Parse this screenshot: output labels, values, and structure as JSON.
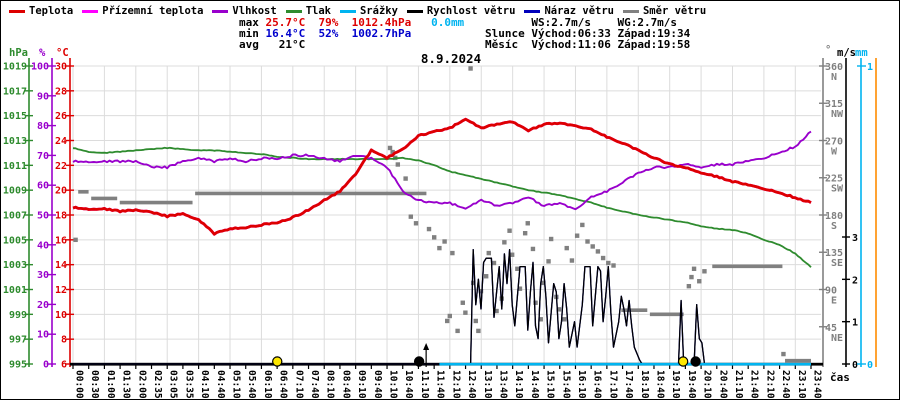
{
  "colors": {
    "temperature": "#dd0000",
    "ground_temperature": "#ff00ff",
    "humidity": "#9900cc",
    "pressure": "#2e8b2e",
    "precipitation": "#00b4f0",
    "wind_speed": "#000000",
    "wind_gust": "#0000bb",
    "wind_direction": "#808080",
    "extra_right_axis": "#ff8c00",
    "grid": "#dcdcdc",
    "sun_marker": "#ffe800",
    "moon_marker": "#000000",
    "stats_max": "#dd0000",
    "stats_min": "#0000cc"
  },
  "legend": {
    "items": [
      {
        "label": "Teplota",
        "color": "#dd0000"
      },
      {
        "label": "Přízemní teplota",
        "color": "#ff00ff"
      },
      {
        "label": "Vlhkost",
        "color": "#9900cc"
      },
      {
        "label": "Tlak",
        "color": "#2e8b2e"
      },
      {
        "label": "Srážky",
        "color": "#00b4f0"
      },
      {
        "label": "Rychlost větru",
        "color": "#000000"
      },
      {
        "label": "Náraz větru",
        "color": "#0000bb"
      },
      {
        "label": "Směr větru",
        "color": "#808080"
      }
    ]
  },
  "header": {
    "stats": {
      "max_label": "max ",
      "max_values": "25.7°C  79%  1012.4hPa",
      "max_precip": "   0.0mm",
      "min_label": "min ",
      "min_values": "16.4°C  52%  1002.7hPa",
      "avg_text": "avg   21°C"
    },
    "wind_row": "       WS:2.7m/s    WG:2.7m/s",
    "sun_row": "Slunce Východ:06:33 Západ:19:34",
    "moon_row": "Měsíc  Východ:11:06 Západ:19:58"
  },
  "chart_data": {
    "type": "line",
    "title": "8.9.2024",
    "x_axis": {
      "label": "čas",
      "ticks": [
        "00:00",
        "00:30",
        "01:00",
        "01:30",
        "02:00",
        "02:35",
        "03:05",
        "03:35",
        "04:10",
        "04:40",
        "05:10",
        "05:40",
        "06:10",
        "06:40",
        "07:10",
        "07:40",
        "08:10",
        "08:40",
        "09:10",
        "09:40",
        "10:10",
        "10:40",
        "11:10",
        "11:40",
        "12:10",
        "12:40",
        "13:10",
        "13:40",
        "14:10",
        "14:40",
        "15:10",
        "15:40",
        "16:10",
        "16:40",
        "17:10",
        "17:40",
        "18:10",
        "18:40",
        "19:10",
        "19:40",
        "20:10",
        "20:40",
        "21:10",
        "21:40",
        "22:10",
        "22:40",
        "23:10",
        "23:40"
      ]
    },
    "y_axes": {
      "pressure": {
        "unit": "hPa",
        "min": 995,
        "max": 1019,
        "step": 2
      },
      "humidity": {
        "unit": "%",
        "min": 0,
        "max": 100,
        "step": 10
      },
      "temperature": {
        "unit": "°C",
        "min": 6,
        "max": 30,
        "step": 2
      },
      "direction": {
        "unit": "°",
        "min": 0,
        "max": 360,
        "ticks": [
          [
            360,
            "N"
          ],
          [
            315,
            "NW"
          ],
          [
            270,
            "W"
          ],
          [
            225,
            "SW"
          ],
          [
            180,
            "S"
          ],
          [
            135,
            "SE"
          ],
          [
            90,
            "E"
          ],
          [
            45,
            "NE"
          ]
        ]
      },
      "wind": {
        "unit": "m/s",
        "ticks": [
          0,
          1,
          2,
          3
        ]
      },
      "precip": {
        "unit": "mm",
        "ticks": [
          0,
          1
        ]
      }
    },
    "series": {
      "teplota": {
        "name": "Teplota",
        "unit": "°C",
        "values": [
          18.6,
          18.5,
          18.5,
          18.3,
          18.4,
          18.2,
          17.9,
          18.1,
          17.6,
          16.5,
          16.9,
          17.0,
          17.2,
          17.4,
          17.8,
          18.4,
          19.2,
          19.9,
          21.3,
          23.2,
          22.6,
          23.3,
          24.4,
          24.7,
          25.0,
          25.7,
          25.0,
          25.3,
          25.5,
          24.8,
          25.3,
          25.4,
          25.2,
          24.9,
          24.3,
          23.8,
          23.2,
          22.6,
          22.1,
          21.8,
          21.4,
          21.1,
          20.7,
          20.4,
          20.1,
          19.8,
          19.4,
          19.0
        ]
      },
      "prizemni_teplota": {
        "name": "Přízemní teplota",
        "unit": "°C",
        "values_same_as": "teplota"
      },
      "vlhkost": {
        "name": "Vlhkost",
        "unit": "%",
        "values": [
          68,
          68,
          68,
          68,
          68,
          66,
          66,
          68,
          69,
          68,
          69,
          68,
          69,
          69,
          70,
          70,
          69,
          68,
          70,
          69,
          66,
          58,
          55,
          54,
          54,
          52,
          55,
          53,
          54,
          56,
          53,
          54,
          52,
          56,
          58,
          61,
          64,
          66,
          66,
          67,
          66,
          67,
          67,
          68,
          69,
          71,
          73,
          78
        ]
      },
      "tlak": {
        "name": "Tlak",
        "unit": "hPa",
        "values": [
          1012.4,
          1012.1,
          1012.0,
          1012.1,
          1012.2,
          1012.3,
          1012.4,
          1012.3,
          1012.2,
          1012.2,
          1012.1,
          1012.0,
          1011.9,
          1011.7,
          1011.6,
          1011.5,
          1011.5,
          1011.5,
          1011.5,
          1011.5,
          1011.5,
          1011.6,
          1011.4,
          1011.0,
          1010.5,
          1010.2,
          1009.9,
          1009.6,
          1009.3,
          1009.0,
          1008.8,
          1008.6,
          1008.3,
          1008.0,
          1007.6,
          1007.3,
          1007.0,
          1006.8,
          1006.6,
          1006.4,
          1006.1,
          1005.9,
          1005.8,
          1005.5,
          1005.0,
          1004.6,
          1003.9,
          1002.8
        ]
      },
      "srazky": {
        "name": "Srážky",
        "unit": "mm",
        "value": 0.0,
        "zero_line_from": "11:45",
        "zero_line_to": "23:40"
      },
      "rychlost_vetru": {
        "name": "Rychlost větru",
        "unit": "m/s",
        "points": [
          [
            "00:00",
            0
          ],
          [
            "12:45",
            0
          ],
          [
            "12:50",
            2.7
          ],
          [
            "12:55",
            1.4
          ],
          [
            "13:00",
            2.0
          ],
          [
            "13:05",
            1.3
          ],
          [
            "13:10",
            2.4
          ],
          [
            "13:15",
            2.5
          ],
          [
            "13:25",
            2.5
          ],
          [
            "13:30",
            1.1
          ],
          [
            "13:35",
            1.7
          ],
          [
            "13:40",
            2.3
          ],
          [
            "13:45",
            1.3
          ],
          [
            "13:50",
            2.6
          ],
          [
            "13:55",
            1.9
          ],
          [
            "14:00",
            2.7
          ],
          [
            "14:05",
            1.4
          ],
          [
            "14:10",
            0.9
          ],
          [
            "14:15",
            1.6
          ],
          [
            "14:20",
            2.3
          ],
          [
            "14:30",
            2.3
          ],
          [
            "14:35",
            0.8
          ],
          [
            "14:40",
            1.7
          ],
          [
            "14:45",
            2.4
          ],
          [
            "14:50",
            0.9
          ],
          [
            "14:55",
            0.6
          ],
          [
            "15:00",
            1.9
          ],
          [
            "15:05",
            2.3
          ],
          [
            "15:10",
            1.6
          ],
          [
            "15:15",
            0.5
          ],
          [
            "15:20",
            1.2
          ],
          [
            "15:25",
            1.9
          ],
          [
            "15:30",
            1.7
          ],
          [
            "15:35",
            0.6
          ],
          [
            "15:40",
            1.0
          ],
          [
            "15:45",
            1.9
          ],
          [
            "15:50",
            1.3
          ],
          [
            "15:55",
            0.4
          ],
          [
            "16:05",
            1.0
          ],
          [
            "16:10",
            0.4
          ],
          [
            "16:20",
            1.4
          ],
          [
            "16:25",
            2.3
          ],
          [
            "16:35",
            2.3
          ],
          [
            "16:40",
            0.9
          ],
          [
            "16:45",
            1.6
          ],
          [
            "16:50",
            2.3
          ],
          [
            "16:55",
            2.2
          ],
          [
            "17:00",
            1.0
          ],
          [
            "17:05",
            1.6
          ],
          [
            "17:10",
            2.3
          ],
          [
            "17:15",
            1.2
          ],
          [
            "17:20",
            0.4
          ],
          [
            "17:30",
            1.0
          ],
          [
            "17:35",
            1.6
          ],
          [
            "17:40",
            1.3
          ],
          [
            "17:45",
            0.9
          ],
          [
            "17:50",
            1.5
          ],
          [
            "17:55",
            0.9
          ],
          [
            "18:00",
            0.4
          ],
          [
            "18:10",
            0.1
          ],
          [
            "18:15",
            0
          ],
          [
            "19:25",
            0
          ],
          [
            "19:30",
            1.5
          ],
          [
            "19:35",
            0
          ],
          [
            "19:55",
            0
          ],
          [
            "20:00",
            1.4
          ],
          [
            "20:05",
            0.6
          ],
          [
            "20:10",
            0.5
          ],
          [
            "20:15",
            0
          ],
          [
            "23:40",
            0
          ]
        ]
      },
      "naraz_vetru": {
        "name": "Náraz větru",
        "unit": "m/s",
        "points_same_as": "rychlost_vetru"
      },
      "smer_vetru": {
        "name": "Směr větru",
        "unit": "°",
        "segments": [
          {
            "from": "00:10",
            "to": "00:30",
            "deg": 208
          },
          {
            "from": "00:35",
            "to": "01:25",
            "deg": 200
          },
          {
            "from": "01:30",
            "to": "03:50",
            "deg": 195
          },
          {
            "from": "03:55",
            "to": "11:20",
            "deg": 206
          },
          {
            "from": "17:35",
            "to": "18:25",
            "deg": 65
          },
          {
            "from": "18:30",
            "to": "19:35",
            "deg": 60
          },
          {
            "from": "20:30",
            "to": "22:45",
            "deg": 118
          },
          {
            "from": "22:50",
            "to": "23:40",
            "deg": 4
          }
        ],
        "points": [
          [
            "00:05",
            150
          ],
          [
            "10:10",
            261
          ],
          [
            "10:15",
            256
          ],
          [
            "10:20",
            249
          ],
          [
            "10:25",
            241
          ],
          [
            "10:40",
            224
          ],
          [
            "10:50",
            178
          ],
          [
            "11:00",
            170
          ],
          [
            "11:25",
            163
          ],
          [
            "11:35",
            153
          ],
          [
            "11:45",
            140
          ],
          [
            "11:55",
            148
          ],
          [
            "12:00",
            52
          ],
          [
            "12:05",
            58
          ],
          [
            "12:10",
            134
          ],
          [
            "12:20",
            40
          ],
          [
            "12:30",
            74
          ],
          [
            "12:35",
            62
          ],
          [
            "12:45",
            357
          ],
          [
            "12:50",
            98
          ],
          [
            "12:55",
            52
          ],
          [
            "13:00",
            40
          ],
          [
            "13:05",
            88
          ],
          [
            "13:15",
            106
          ],
          [
            "13:20",
            134
          ],
          [
            "13:30",
            122
          ],
          [
            "13:35",
            64
          ],
          [
            "13:45",
            79
          ],
          [
            "13:50",
            147
          ],
          [
            "14:00",
            161
          ],
          [
            "14:05",
            132
          ],
          [
            "14:15",
            115
          ],
          [
            "14:20",
            91
          ],
          [
            "14:30",
            158
          ],
          [
            "14:35",
            170
          ],
          [
            "14:45",
            139
          ],
          [
            "14:50",
            74
          ],
          [
            "15:00",
            54
          ],
          [
            "15:05",
            98
          ],
          [
            "15:15",
            124
          ],
          [
            "15:20",
            151
          ],
          [
            "15:30",
            81
          ],
          [
            "15:35",
            66
          ],
          [
            "15:45",
            54
          ],
          [
            "15:50",
            140
          ],
          [
            "16:00",
            125
          ],
          [
            "16:10",
            155
          ],
          [
            "16:20",
            168
          ],
          [
            "16:30",
            148
          ],
          [
            "16:40",
            142
          ],
          [
            "16:50",
            136
          ],
          [
            "17:00",
            128
          ],
          [
            "17:10",
            122
          ],
          [
            "17:20",
            119
          ],
          [
            "19:45",
            94
          ],
          [
            "19:50",
            105
          ],
          [
            "19:55",
            115
          ],
          [
            "20:05",
            100
          ],
          [
            "20:15",
            112
          ],
          [
            "22:47",
            12
          ]
        ]
      }
    },
    "markers": [
      {
        "event": "východ slunce",
        "time": "06:33",
        "body": "sun"
      },
      {
        "event": "východ měsíce",
        "time": "11:06",
        "body": "moon",
        "arrow": "up"
      },
      {
        "event": "západ slunce",
        "time": "19:34",
        "body": "sun"
      },
      {
        "event": "západ měsíce",
        "time": "19:58",
        "body": "moon"
      }
    ]
  }
}
